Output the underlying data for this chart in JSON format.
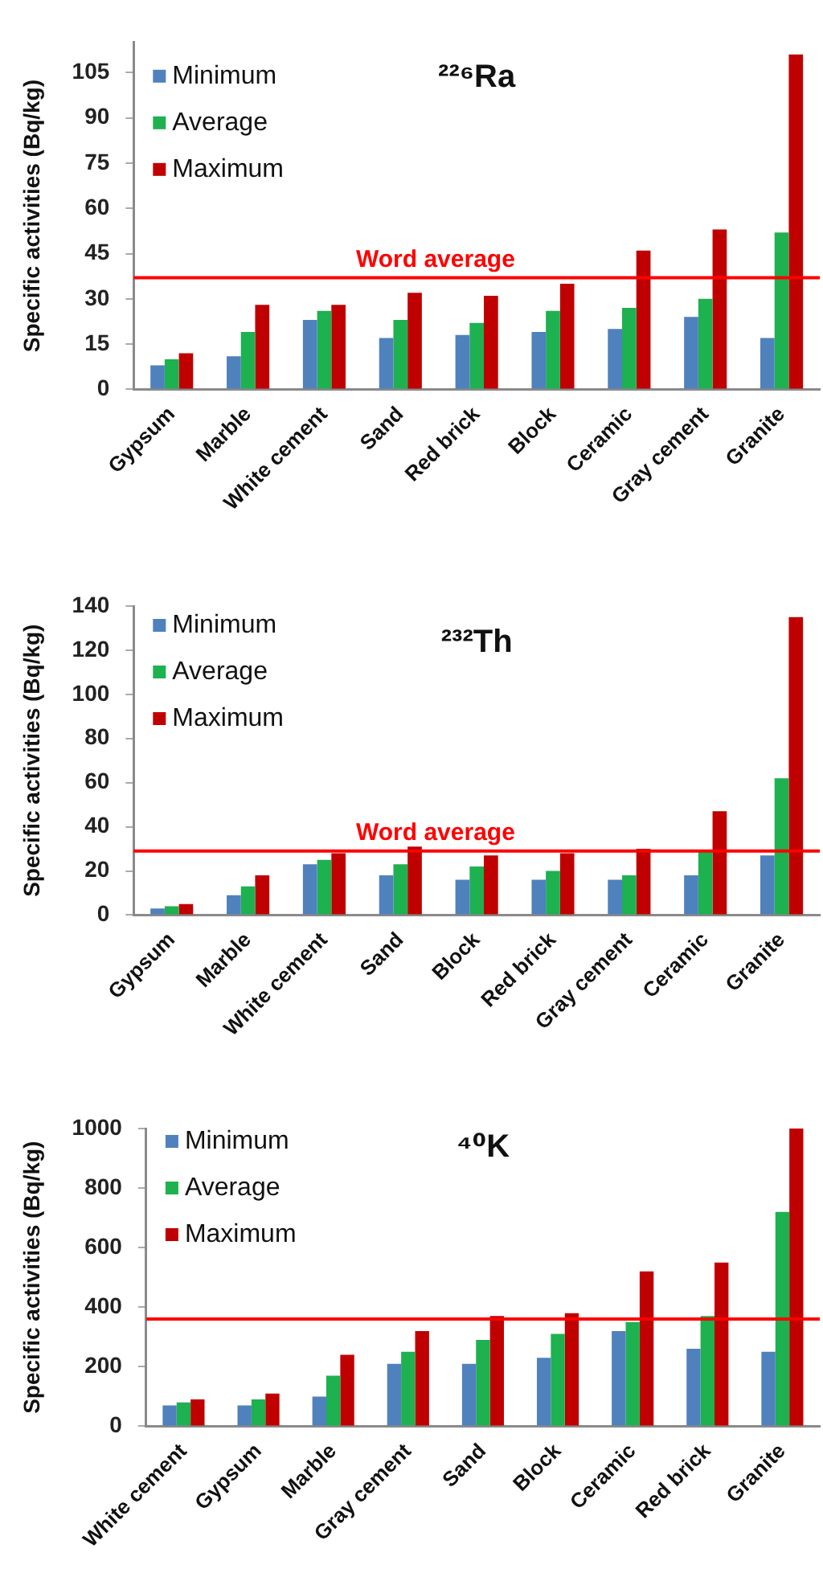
{
  "chart_data": [
    {
      "type": "bar",
      "title": "²²⁶Ra",
      "ylabel": "Specific activities (Bq/kg)",
      "legend": "top left",
      "categories": [
        "Gypsum",
        "Marble",
        "White cement",
        "Sand",
        "Red brick",
        "Block",
        "Ceramic",
        "Gray cement",
        "Granite"
      ],
      "series": [
        {
          "name": "Minimum",
          "color": "#4f81bd",
          "values": [
            8,
            11,
            23,
            17,
            18,
            19,
            20,
            24,
            17
          ]
        },
        {
          "name": "Average",
          "color": "#1db150",
          "values": [
            10,
            19,
            26,
            23,
            22,
            26,
            27,
            30,
            52
          ]
        },
        {
          "name": "Maximum",
          "color": "#c00000",
          "values": [
            12,
            28,
            28,
            32,
            31,
            35,
            46,
            53,
            111
          ]
        }
      ],
      "ylim": [
        0,
        115
      ],
      "yticks": [
        0,
        15,
        30,
        45,
        60,
        75,
        90,
        105
      ],
      "ref_lines": [
        {
          "axis": "y",
          "value": 37,
          "label": "Word average",
          "color": "#ff0000"
        }
      ]
    },
    {
      "type": "bar",
      "title": "²³²Th",
      "ylabel": "Specific activities (Bq/kg)",
      "legend": "top left",
      "categories": [
        "Gypsum",
        "Marble",
        "White cement",
        "Sand",
        "Block",
        "Red brick",
        "Gray cement",
        "Ceramic",
        "Granite"
      ],
      "series": [
        {
          "name": "Minimum",
          "color": "#4f81bd",
          "values": [
            3,
            9,
            23,
            18,
            16,
            16,
            16,
            18,
            27
          ]
        },
        {
          "name": "Average",
          "color": "#1db150",
          "values": [
            4,
            13,
            25,
            23,
            22,
            20,
            18,
            29,
            62
          ]
        },
        {
          "name": "Maximum",
          "color": "#c00000",
          "values": [
            5,
            18,
            28,
            31,
            27,
            28,
            30,
            47,
            135
          ]
        }
      ],
      "ylim": [
        0,
        140
      ],
      "yticks": [
        0,
        20,
        40,
        60,
        80,
        100,
        120,
        140
      ],
      "ref_lines": [
        {
          "axis": "y",
          "value": 29,
          "label": "Word average",
          "color": "#ff0000"
        }
      ]
    },
    {
      "type": "bar",
      "title": "⁴⁰K",
      "ylabel": "Specific activities (Bq/kg)",
      "legend": "top left",
      "categories": [
        "White cement",
        "Gypsum",
        "Marble",
        "Gray cement",
        "Sand",
        "Block",
        "Ceramic",
        "Red brick",
        "Granite"
      ],
      "series": [
        {
          "name": "Minimum",
          "color": "#4f81bd",
          "values": [
            70,
            70,
            100,
            210,
            210,
            230,
            320,
            260,
            250
          ]
        },
        {
          "name": "Average",
          "color": "#1db150",
          "values": [
            80,
            90,
            170,
            250,
            290,
            310,
            350,
            370,
            720
          ]
        },
        {
          "name": "Maximum",
          "color": "#c00000",
          "values": [
            90,
            110,
            240,
            320,
            370,
            380,
            520,
            550,
            1000
          ]
        }
      ],
      "ylim": [
        0,
        1000
      ],
      "yticks": [
        0,
        200,
        400,
        600,
        800,
        1000
      ],
      "ref_lines": [
        {
          "axis": "y",
          "value": 360,
          "color": "#ff0000"
        }
      ]
    }
  ]
}
